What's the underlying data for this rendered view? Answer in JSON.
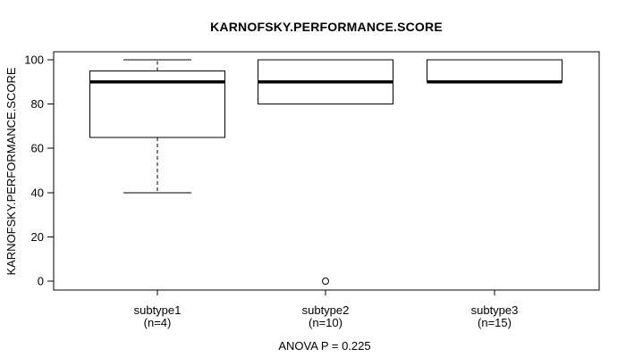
{
  "chart_data": {
    "type": "boxplot",
    "title": "KARNOFSKY.PERFORMANCE.SCORE",
    "ylabel": "KARNOFSKY.PERFORMANCE.SCORE",
    "xlabel": "",
    "annotation": "ANOVA P = 0.225",
    "ylim": [
      0,
      100
    ],
    "yticks": [
      0,
      20,
      40,
      60,
      80,
      100
    ],
    "grid": false,
    "legend": false,
    "categories": [
      "subtype1",
      "subtype2",
      "subtype3"
    ],
    "groups": [
      {
        "label": "subtype1",
        "sublabel": "(n=4)",
        "n": 4,
        "whisker_low": 40,
        "q1": 65,
        "median": 90,
        "q3": 95,
        "whisker_high": 100,
        "outliers": []
      },
      {
        "label": "subtype2",
        "sublabel": "(n=10)",
        "n": 10,
        "whisker_low": 80,
        "q1": 80,
        "median": 90,
        "q3": 100,
        "whisker_high": 100,
        "outliers": [
          0
        ]
      },
      {
        "label": "subtype3",
        "sublabel": "(n=15)",
        "n": 15,
        "whisker_low": 90,
        "q1": 90,
        "median": 90,
        "q3": 100,
        "whisker_high": 100,
        "outliers": []
      }
    ],
    "colors": {
      "line": "#000000",
      "box_fill": "#ffffff",
      "background": "#ffffff"
    }
  }
}
